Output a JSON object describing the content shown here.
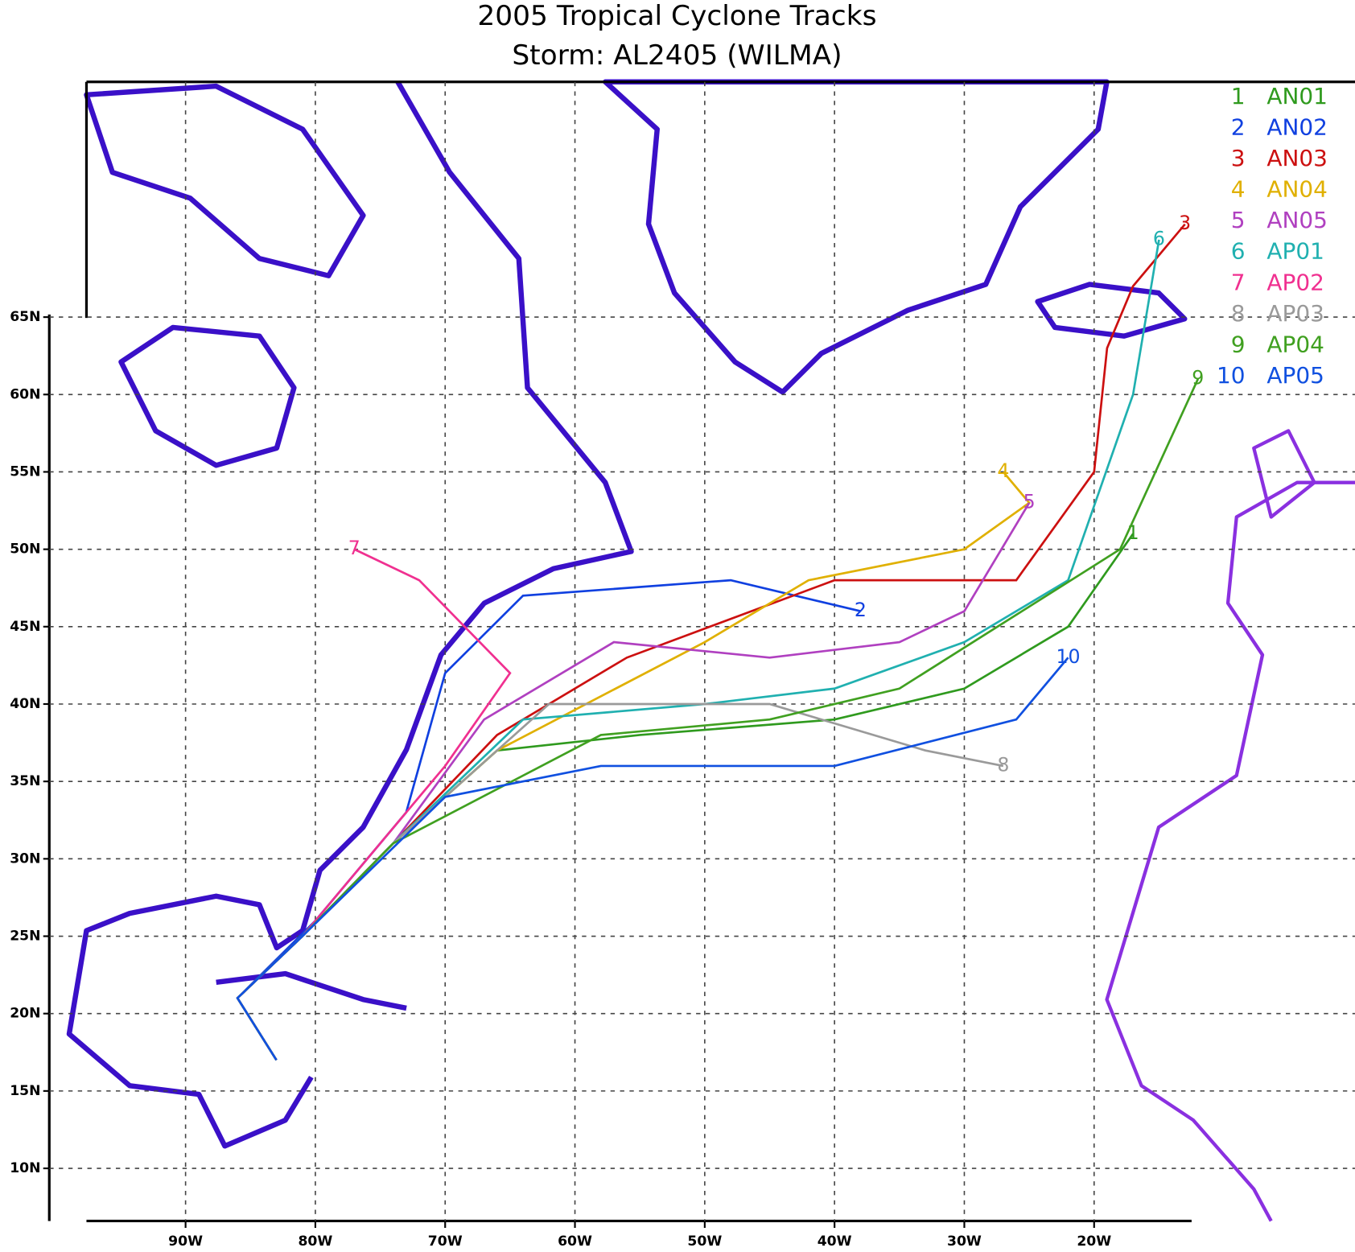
{
  "chart_data": {
    "type": "line",
    "title": "2005 Tropical Cyclone Tracks",
    "subtitle": "Storm: AL2405 (WILMA)",
    "xlim": [
      -100.5,
      0.1
    ],
    "ylim": [
      6.6,
      80.2
    ],
    "xticks": [
      {
        "value": -90,
        "label": "90W"
      },
      {
        "value": -80,
        "label": "80W"
      },
      {
        "value": -70,
        "label": "70W"
      },
      {
        "value": -60,
        "label": "60W"
      },
      {
        "value": -50,
        "label": "50W"
      },
      {
        "value": -40,
        "label": "40W"
      },
      {
        "value": -30,
        "label": "30W"
      },
      {
        "value": -20,
        "label": "20W"
      }
    ],
    "yticks": [
      {
        "value": 10,
        "label": "10N"
      },
      {
        "value": 15,
        "label": "15N"
      },
      {
        "value": 20,
        "label": "20N"
      },
      {
        "value": 25,
        "label": "25N"
      },
      {
        "value": 30,
        "label": "30N"
      },
      {
        "value": 35,
        "label": "35N"
      },
      {
        "value": 40,
        "label": "40N"
      },
      {
        "value": 45,
        "label": "45N"
      },
      {
        "value": 50,
        "label": "50N"
      },
      {
        "value": 55,
        "label": "55N"
      },
      {
        "value": 60,
        "label": "60N"
      },
      {
        "value": 65,
        "label": "65N"
      }
    ],
    "grid": true,
    "legend": "top-right",
    "series": [
      {
        "label": "1",
        "name": "AN01",
        "color": "#2f9a1e",
        "lon": [
          -83,
          -86,
          -81,
          -74,
          -66,
          -55,
          -40,
          -30,
          -22,
          -17
        ],
        "lat": [
          17,
          21,
          25,
          31,
          37,
          38,
          39,
          41,
          45,
          51
        ]
      },
      {
        "label": "2",
        "name": "AN02",
        "color": "#1040e0",
        "lon": [
          -83,
          -86,
          -80,
          -73,
          -70,
          -64,
          -48,
          -38
        ],
        "lat": [
          17,
          21,
          26,
          33,
          42,
          47,
          48,
          46
        ]
      },
      {
        "label": "3",
        "name": "AN03",
        "color": "#cc1010",
        "lon": [
          -83,
          -86,
          -81,
          -74,
          -66,
          -56,
          -40,
          -26,
          -20,
          -19,
          -17,
          -13
        ],
        "lat": [
          17,
          21,
          25,
          31,
          38,
          43,
          48,
          48,
          55,
          63,
          67,
          71
        ]
      },
      {
        "label": "4",
        "name": "AN04",
        "color": "#e0b000",
        "lon": [
          -83,
          -86,
          -81,
          -74,
          -66,
          -50,
          -42,
          -30,
          -25,
          -27
        ],
        "lat": [
          17,
          21,
          25,
          31,
          37,
          44,
          48,
          50,
          53,
          55
        ]
      },
      {
        "label": "5",
        "name": "AN05",
        "color": "#b040c0",
        "lon": [
          -83,
          -86,
          -81,
          -74,
          -67,
          -57,
          -45,
          -35,
          -30,
          -25
        ],
        "lat": [
          17,
          21,
          25,
          31,
          39,
          44,
          43,
          44,
          46,
          53
        ]
      },
      {
        "label": "6",
        "name": "AP01",
        "color": "#20b0b0",
        "lon": [
          -83,
          -86,
          -81,
          -74,
          -64,
          -50,
          -40,
          -30,
          -22,
          -17,
          -15
        ],
        "lat": [
          17,
          21,
          25,
          31,
          39,
          40,
          41,
          44,
          48,
          60,
          70
        ]
      },
      {
        "label": "7",
        "name": "AP02",
        "color": "#f03090",
        "lon": [
          -83,
          -86,
          -81,
          -70,
          -65,
          -72,
          -77
        ],
        "lat": [
          17,
          21,
          25,
          36,
          42,
          48,
          50
        ]
      },
      {
        "label": "8",
        "name": "AP03",
        "color": "#9a9a9a",
        "lon": [
          -83,
          -86,
          -81,
          -74,
          -62,
          -45,
          -33,
          -27
        ],
        "lat": [
          17,
          21,
          25,
          31,
          40,
          40,
          37,
          36
        ]
      },
      {
        "label": "9",
        "name": "AP04",
        "color": "#40a020",
        "lon": [
          -83,
          -86,
          -81,
          -74,
          -58,
          -45,
          -35,
          -18,
          -12
        ],
        "lat": [
          17,
          21,
          25,
          31,
          38,
          39,
          41,
          50,
          61
        ]
      },
      {
        "label": "10",
        "name": "AP05",
        "color": "#1050e0",
        "lon": [
          -83,
          -86,
          -81,
          -70,
          -58,
          -40,
          -26,
          -22
        ],
        "lat": [
          17,
          21,
          25,
          34,
          36,
          36,
          39,
          43
        ]
      }
    ]
  }
}
